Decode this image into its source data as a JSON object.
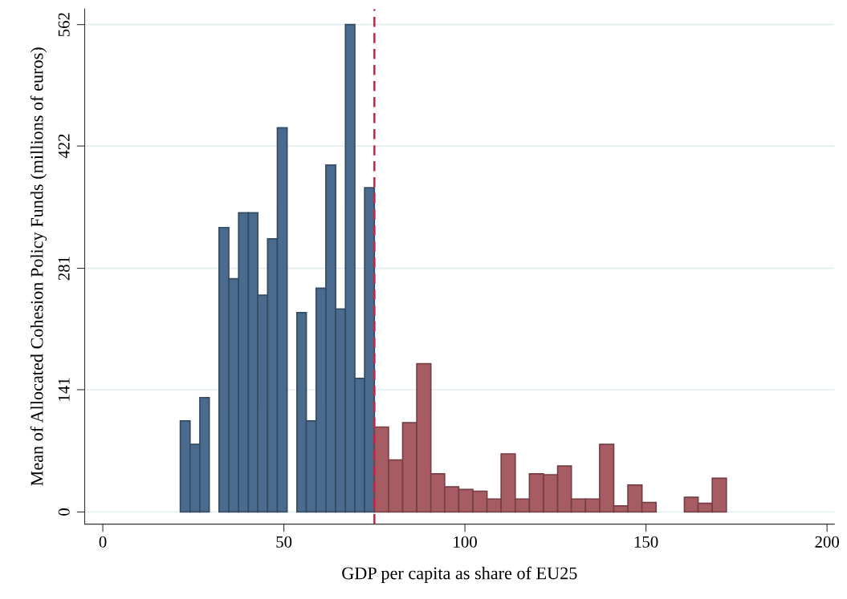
{
  "chart_data": {
    "type": "histogram",
    "xlabel": "GDP per capita as share of EU25",
    "ylabel": "Mean of Allocated Cohesion Policy Funds (millions of euros)",
    "bins": [
      21.4,
      24.1,
      26.8,
      29.4,
      32.1,
      34.8,
      37.5,
      40.2,
      42.8,
      45.5,
      48.2,
      50.9,
      53.6,
      56.2,
      58.9,
      61.6,
      64.3,
      67.0,
      69.6,
      72.3,
      75.0,
      78.9,
      82.8,
      86.7,
      90.6,
      94.4,
      98.3,
      102.2,
      106.1,
      110.0,
      113.9,
      117.8,
      121.7,
      125.6,
      129.4,
      133.3,
      137.2,
      141.1,
      145.0,
      148.9,
      152.8,
      160.6,
      164.4,
      168.3,
      172.2
    ],
    "values": [
      105,
      78,
      132,
      null,
      328,
      269,
      345,
      345,
      250,
      315,
      443,
      null,
      230,
      105,
      258,
      400,
      234,
      562,
      154,
      374,
      98,
      60,
      103,
      171,
      44,
      29,
      26,
      24,
      15,
      67,
      15,
      44,
      43,
      53,
      15,
      15,
      78,
      7,
      31,
      11,
      null,
      17,
      10,
      39
    ],
    "colors": [
      "#4a6b8e",
      "#4a6b8e",
      "#4a6b8e",
      "#4a6b8e",
      "#4a6b8e",
      "#4a6b8e",
      "#4a6b8e",
      "#4a6b8e",
      "#4a6b8e",
      "#4a6b8e",
      "#4a6b8e",
      "#4a6b8e",
      "#4a6b8e",
      "#4a6b8e",
      "#4a6b8e",
      "#4a6b8e",
      "#4a6b8e",
      "#4a6b8e",
      "#4a6b8e",
      "#4a6b8e",
      "#a65c62",
      "#a65c62",
      "#a65c62",
      "#a65c62",
      "#a65c62",
      "#a65c62",
      "#a65c62",
      "#a65c62",
      "#a65c62",
      "#a65c62",
      "#a65c62",
      "#a65c62",
      "#a65c62",
      "#a65c62",
      "#a65c62",
      "#a65c62",
      "#a65c62",
      "#a65c62",
      "#a65c62",
      "#a65c62",
      "#a65c62",
      "#a65c62",
      "#a65c62",
      "#a65c62"
    ],
    "xlim": [
      -5,
      202
    ],
    "xticks": [
      0,
      50,
      100,
      150,
      200
    ],
    "ylim": [
      -14,
      580
    ],
    "yticks": [
      0,
      141,
      281,
      422,
      562
    ],
    "grid": "y",
    "ref_lines": [
      {
        "axis": "x",
        "value": 75,
        "color": "#d0203f",
        "line_style": "dashed"
      }
    ]
  }
}
